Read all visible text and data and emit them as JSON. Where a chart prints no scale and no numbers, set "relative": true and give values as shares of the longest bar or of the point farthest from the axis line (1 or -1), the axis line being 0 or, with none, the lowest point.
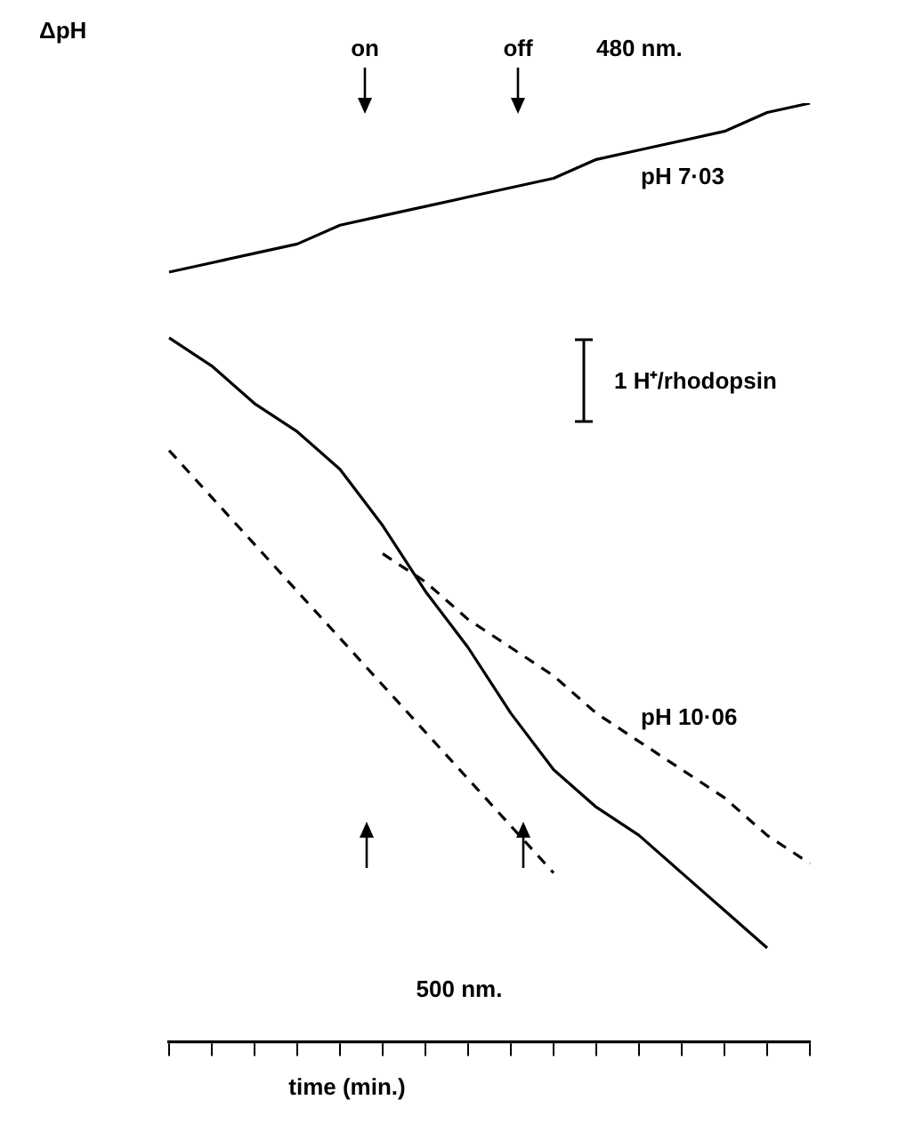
{
  "chart_data": {
    "type": "line",
    "relative": true,
    "ylabel": "ΔpH",
    "xlabel": "time (min.)",
    "marker": "none",
    "grid": false,
    "legend": false,
    "categories": [
      null,
      null,
      null,
      null,
      null,
      null,
      null,
      null,
      null,
      null,
      null,
      null,
      null,
      null,
      null,
      null
    ],
    "series": [
      {
        "color": "#000000",
        "line_style": "solid",
        "values": [
          0.82,
          0.83,
          0.84,
          0.85,
          0.87,
          0.88,
          0.89,
          0.9,
          0.91,
          0.92,
          0.94,
          0.95,
          0.96,
          0.97,
          0.99,
          1.0
        ]
      },
      {
        "color": "#000000",
        "line_style": "solid",
        "values": [
          0.75,
          0.72,
          0.68,
          0.65,
          0.61,
          0.55,
          0.48,
          0.42,
          0.35,
          0.29,
          0.25,
          0.22,
          0.18,
          0.14,
          0.1,
          null
        ]
      },
      {
        "color": "#000000",
        "line_style": "dashed",
        "values": [
          0.63,
          0.58,
          0.53,
          0.48,
          0.43,
          0.38,
          0.33,
          0.28,
          0.23,
          0.18,
          null,
          null,
          null,
          null,
          null,
          null
        ]
      },
      {
        "color": "#000000",
        "line_style": "dashed",
        "values": [
          null,
          null,
          null,
          null,
          null,
          0.52,
          0.49,
          0.45,
          0.42,
          0.39,
          0.35,
          0.32,
          0.29,
          0.26,
          0.22,
          0.19
        ]
      }
    ],
    "annotations": [
      "on",
      "off",
      "480 nm.",
      "pH 7·03",
      "1 H⁺/rhodopsin",
      "pH 10·06",
      "500 nm."
    ]
  }
}
